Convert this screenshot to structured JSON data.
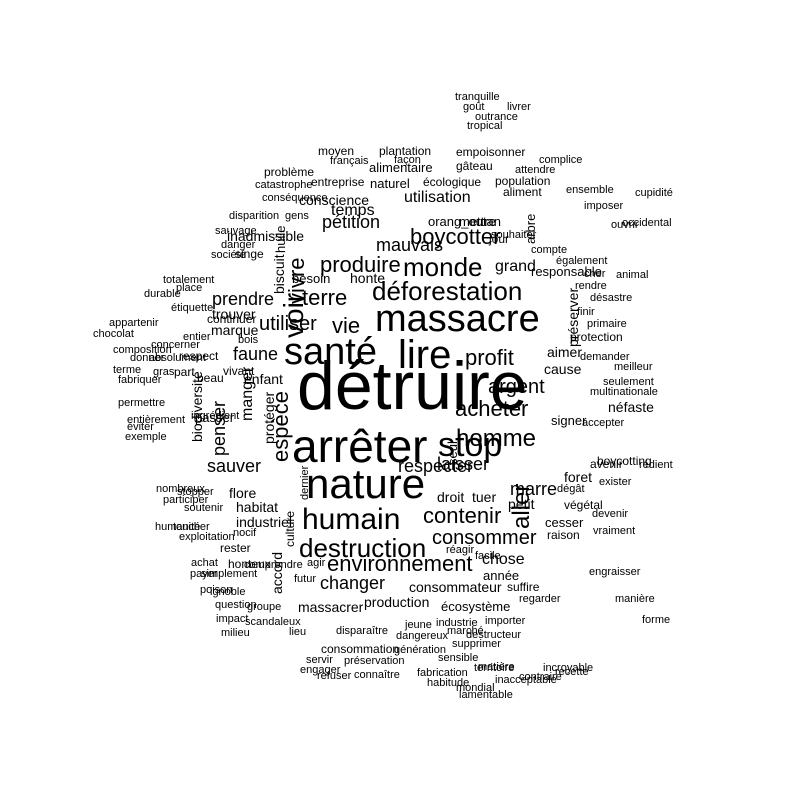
{
  "words": [
    "détruire",
    "arrêter",
    "nature",
    "santé",
    "lire",
    "massacre",
    "stop",
    "humain",
    "homme",
    "déforestation",
    "monde",
    "contenir",
    "destruction",
    "vie",
    "produire",
    "terre",
    "profit",
    "acheter",
    "boycotter",
    "environnement",
    "consommer",
    "utiliser",
    "voir",
    "espèce",
    "argent",
    "laisser",
    "mauvais",
    "pétition",
    "aller",
    "changer",
    "vivre",
    "faune",
    "respecter",
    "prendre",
    "sauver",
    "marre",
    "temps",
    "chose",
    "penser",
    "grand",
    "conscience",
    "utilisation",
    "manger",
    "enfant",
    "droit",
    "tuer",
    "flore",
    "industriel",
    "trouver",
    "accord",
    "protéger",
    "aimer",
    "cause",
    "consommateur",
    "biscuit",
    "petit",
    "foret",
    "massacrer",
    "production",
    "marque",
    "habitat",
    "biodiversité",
    "inadmissible",
    "honte",
    "cesser",
    "signer",
    "écosystème",
    "orang_outan",
    "année",
    "continuer",
    "besoin",
    "mettre",
    "naturel",
    "respect",
    "seul",
    "vivant",
    "problème",
    "préserver",
    "responsable",
    "alimentaire",
    "entreprise",
    "écologique",
    "population",
    "gâteau",
    "aliment",
    "empoisonner",
    "plantation",
    "moyen",
    "français",
    "façon",
    "catastrophe",
    "conséquence",
    "disparition",
    "gens",
    "sauvage",
    "danger",
    "société",
    "singe",
    "huile",
    "jour",
    "souhaiter",
    "arbre",
    "compte",
    "également",
    "cher",
    "rendre",
    "finir",
    "désastre",
    "primaire",
    "protection",
    "demander",
    "meilleur",
    "seulement",
    "multinationale",
    "néfaste",
    "exister",
    "dégât",
    "végétal",
    "raison",
    "vraiment",
    "devenir",
    "avenir",
    "boycotting",
    "rédient",
    "ingrédient",
    "passer",
    "stopper",
    "soutenir",
    "honteux",
    "rester",
    "nocif",
    "culture",
    "accepter",
    "comprendre",
    "simplement",
    "agir",
    "futur",
    "dernier",
    "réagir",
    "facile",
    "suffire",
    "regarder",
    "importer",
    "industrie",
    "jeune",
    "dangereux",
    "consommation",
    "préservation",
    "refuser",
    "connaître",
    "génération",
    "supprimer",
    "destructeur",
    "disparaître",
    "milieu",
    "lieu",
    "scandaleux",
    "groupe",
    "servir",
    "engager",
    "humanité",
    "exemple",
    "éviter",
    "totalement",
    "durable",
    "place",
    "étiquette",
    "terme",
    "composition",
    "absolument",
    "concerner",
    "donner",
    "fabriquer",
    "permettre",
    "entièrement",
    "nombreux",
    "participer",
    "toucher",
    "exploitation",
    "achat",
    "poison",
    "question",
    "impact",
    "payer",
    "ignoble",
    "sensible",
    "fabrication",
    "habitude",
    "matière",
    "inacceptable",
    "mondial",
    "lamentable",
    "recette",
    "contraire",
    "incroyable",
    "engraisser",
    "territoire",
    "marché",
    "manière",
    "forme",
    "ensemble",
    "imposer",
    "ouvrir",
    "chocolat",
    "appartenir",
    "entier",
    "bois",
    "beau",
    "part",
    "gras",
    "occidental",
    "attendre",
    "complice",
    "tropical",
    "goût",
    "outrance",
    "livrer",
    "tranquille",
    "cupidité",
    "animal"
  ]
}
